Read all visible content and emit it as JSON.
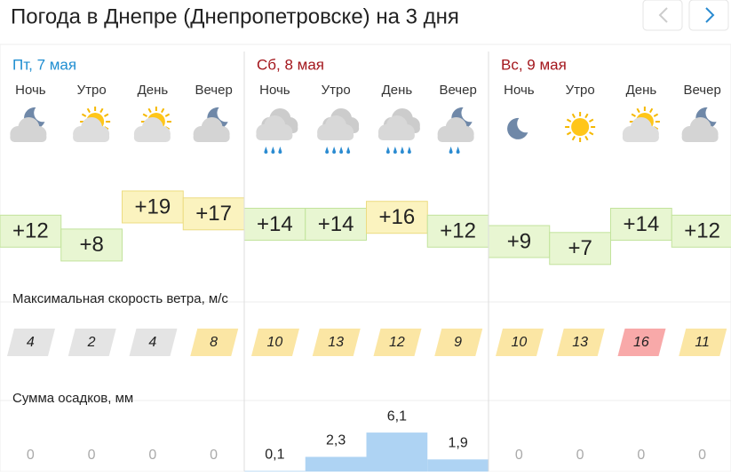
{
  "header": {
    "title": "Погода в Днепре (Днепропетровске) на 3 дня"
  },
  "wind_title": "Максимальная скорость ветра, м/с",
  "precip_title": "Сумма осадков, мм",
  "days": [
    {
      "label": "Пт, 7 мая",
      "color": "#1f8ed1",
      "periods": [
        {
          "name": "Ночь",
          "temp": {
            "value": 12,
            "label": "+12"
          },
          "temp_color": "#e8f6d2",
          "wind": 4,
          "wind_color": "#e4e4e4",
          "precip": 0
        },
        {
          "name": "Утро",
          "temp": {
            "value": 8,
            "label": "+8"
          },
          "temp_color": "#e8f6d2",
          "wind": 2,
          "wind_color": "#e4e4e4",
          "precip": 0
        },
        {
          "name": "День",
          "temp": {
            "value": 19,
            "label": "+19"
          },
          "temp_color": "#fbf3bf",
          "wind": 4,
          "wind_color": "#e4e4e4",
          "precip": 0
        },
        {
          "name": "Вечер",
          "temp": {
            "value": 17,
            "label": "+17"
          },
          "temp_color": "#fbf3bf",
          "wind": 8,
          "wind_color": "#fbe6a4",
          "precip": 0
        }
      ]
    },
    {
      "label": "Сб, 8 мая",
      "color": "#a3161c",
      "periods": [
        {
          "name": "Ночь",
          "temp": {
            "value": 14,
            "label": "+14"
          },
          "temp_color": "#e8f6d2",
          "wind": 10,
          "wind_color": "#fbe6a4",
          "precip": {
            "value": 0.1,
            "label": "0,1"
          }
        },
        {
          "name": "Утро",
          "temp": {
            "value": 14,
            "label": "+14"
          },
          "temp_color": "#e8f6d2",
          "wind": 13,
          "wind_color": "#fbe6a4",
          "precip": {
            "value": 2.3,
            "label": "2,3"
          }
        },
        {
          "name": "День",
          "temp": {
            "value": 16,
            "label": "+16"
          },
          "temp_color": "#fbf3bf",
          "wind": 12,
          "wind_color": "#fbe6a4",
          "precip": {
            "value": 6.1,
            "label": "6,1"
          }
        },
        {
          "name": "Вечер",
          "temp": {
            "value": 12,
            "label": "+12"
          },
          "temp_color": "#e8f6d2",
          "wind": 9,
          "wind_color": "#fbe6a4",
          "precip": {
            "value": 1.9,
            "label": "1,9"
          }
        }
      ]
    },
    {
      "label": "Вс, 9 мая",
      "color": "#a3161c",
      "periods": [
        {
          "name": "Ночь",
          "temp": {
            "value": 9,
            "label": "+9"
          },
          "temp_color": "#e8f6d2",
          "wind": 10,
          "wind_color": "#fbe6a4",
          "precip": 0
        },
        {
          "name": "Утро",
          "temp": {
            "value": 7,
            "label": "+7"
          },
          "temp_color": "#e8f6d2",
          "wind": 13,
          "wind_color": "#fbe6a4",
          "precip": 0
        },
        {
          "name": "День",
          "temp": {
            "value": 14,
            "label": "+14"
          },
          "temp_color": "#e8f6d2",
          "wind": 16,
          "wind_color": "#f8a9a9",
          "precip": 0
        },
        {
          "name": "Вечер",
          "temp": {
            "value": 12,
            "label": "+12"
          },
          "temp_color": "#e8f6d2",
          "wind": 11,
          "wind_color": "#fbe6a4",
          "precip": 0
        }
      ]
    }
  ]
}
